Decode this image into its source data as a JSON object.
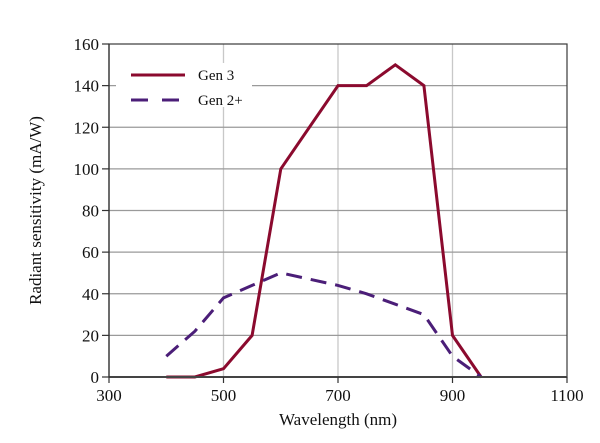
{
  "chart_data": {
    "type": "line",
    "title": "",
    "xlabel": "Wavelength (nm)",
    "ylabel": "Radiant sensitivity (mA/W)",
    "xlim": [
      300,
      1100
    ],
    "ylim": [
      0,
      160
    ],
    "xticks": [
      300,
      500,
      700,
      900,
      1100
    ],
    "yticks": [
      0,
      20,
      40,
      60,
      80,
      100,
      120,
      140,
      160
    ],
    "grid": true,
    "legend_position": "top-left",
    "series": [
      {
        "name": "Gen 3",
        "style": "solid",
        "color": "#8b0a2e",
        "x": [
          400,
          450,
          500,
          550,
          600,
          700,
          750,
          800,
          850,
          900,
          950
        ],
        "y": [
          0,
          0,
          4,
          20,
          100,
          140,
          140,
          150,
          140,
          20,
          0
        ]
      },
      {
        "name": "Gen 2+",
        "style": "dashed",
        "color": "#4b1e78",
        "x": [
          400,
          450,
          500,
          550,
          600,
          700,
          750,
          800,
          850,
          900,
          950
        ],
        "y": [
          10,
          22,
          38,
          44,
          50,
          44,
          40,
          35,
          30,
          10,
          0
        ]
      }
    ]
  }
}
